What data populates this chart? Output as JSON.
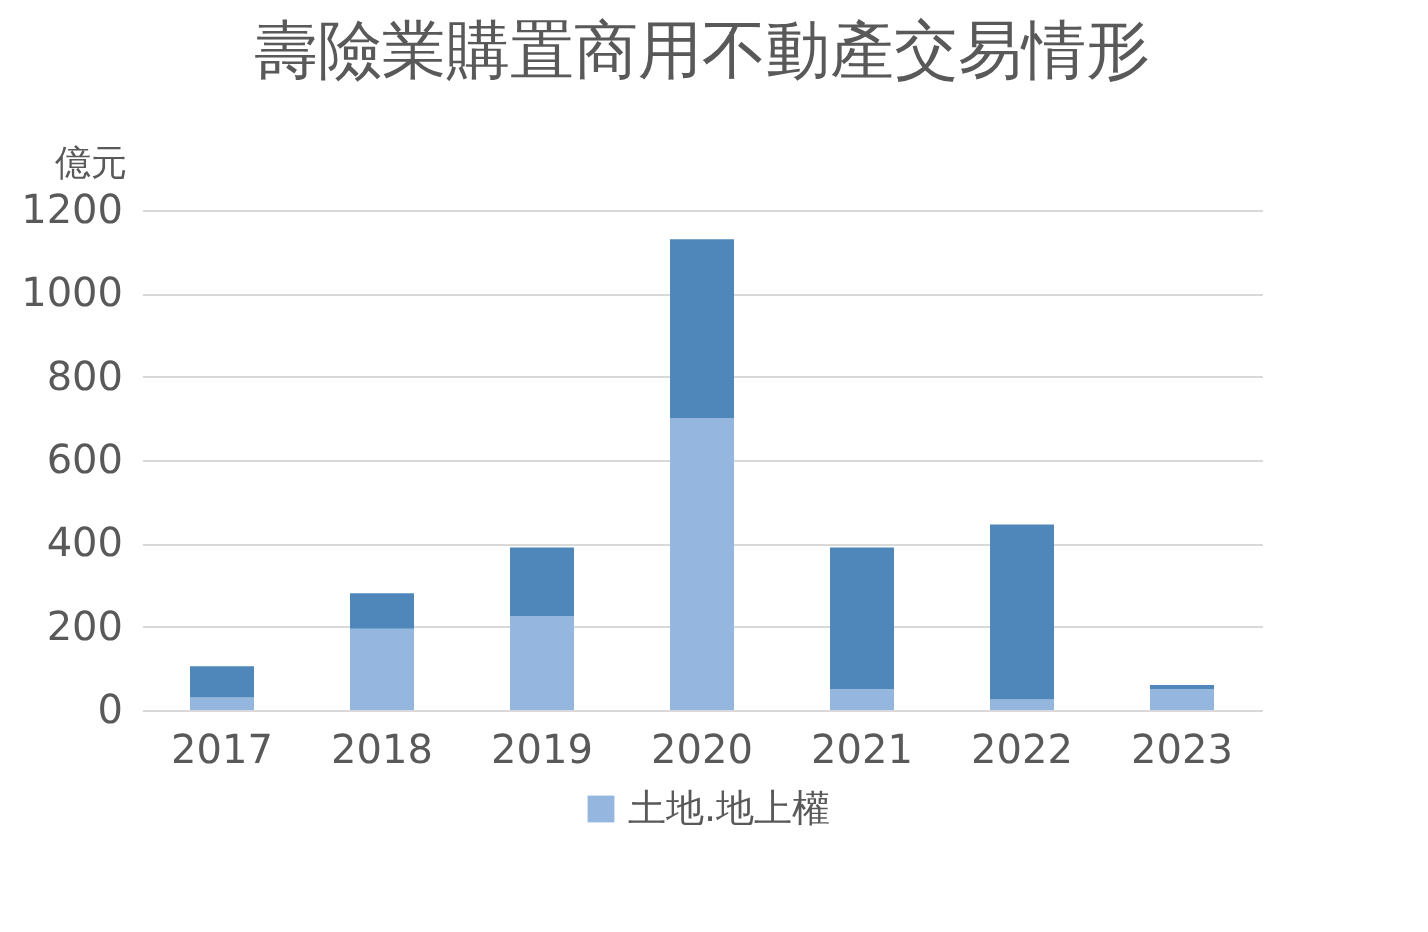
{
  "chart_data": {
    "type": "bar",
    "title": "壽險業購置商用不動產交易情形",
    "ylabel": "億元",
    "stacked": true,
    "categories": [
      "2017",
      "2018",
      "2019",
      "2020",
      "2021",
      "2022",
      "2023"
    ],
    "series": [
      {
        "name": "土地.地上權",
        "color": "#95b7df",
        "values": [
          30,
          195,
          225,
          700,
          50,
          25,
          50
        ]
      },
      {
        "color": "#4f87bb",
        "values": [
          75,
          85,
          165,
          430,
          340,
          420,
          10
        ]
      }
    ],
    "ylim": [
      0,
      1200
    ],
    "yticks": [
      0,
      200,
      400,
      600,
      800,
      1000,
      1200
    ],
    "grid": "y",
    "legend": "bottom"
  }
}
